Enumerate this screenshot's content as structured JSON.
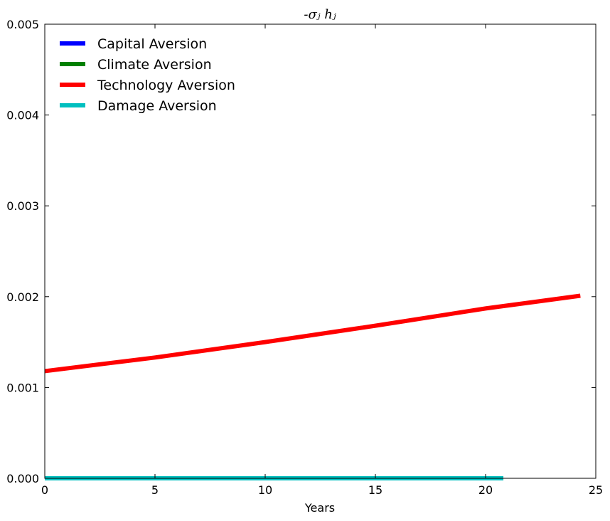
{
  "chart_data": {
    "type": "line",
    "title": "-σⱼ hⱼ",
    "xlabel": "Years",
    "ylabel": "",
    "xlim": [
      0,
      25
    ],
    "ylim": [
      0,
      0.005
    ],
    "xticks": [
      "0",
      "5",
      "10",
      "15",
      "20",
      "25"
    ],
    "yticks": [
      "0.000",
      "0.001",
      "0.002",
      "0.003",
      "0.004",
      "0.005"
    ],
    "grid": false,
    "legend_position": "top-left",
    "series": [
      {
        "name": "Capital Aversion",
        "color": "#0000ff",
        "x": [
          0,
          20.8
        ],
        "y": [
          0.0,
          0.0
        ]
      },
      {
        "name": "Climate Aversion",
        "color": "#008000",
        "x": [
          0,
          20.8
        ],
        "y": [
          0.0,
          0.0
        ]
      },
      {
        "name": "Technology Aversion",
        "color": "#ff0000",
        "x": [
          0,
          5,
          10,
          15,
          20,
          24.3
        ],
        "y": [
          0.00118,
          0.00133,
          0.0015,
          0.00168,
          0.00187,
          0.00201
        ]
      },
      {
        "name": "Damage Aversion",
        "color": "#00bfbf",
        "x": [
          0,
          20.8
        ],
        "y": [
          0.0,
          0.0
        ]
      }
    ]
  }
}
